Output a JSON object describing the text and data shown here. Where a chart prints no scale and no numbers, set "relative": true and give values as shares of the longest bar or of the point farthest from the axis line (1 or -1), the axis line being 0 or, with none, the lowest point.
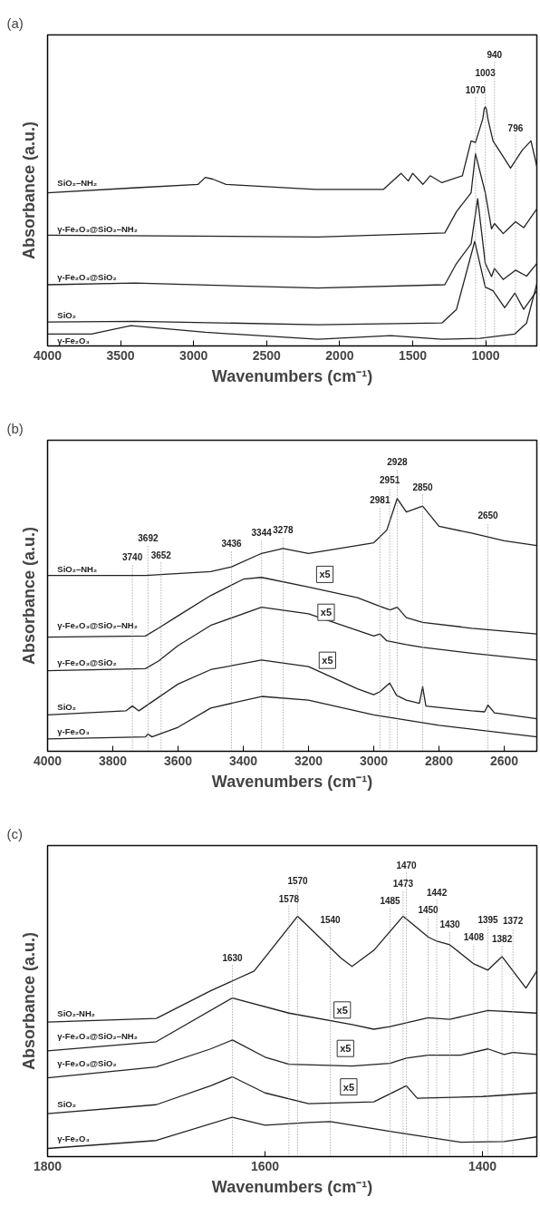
{
  "chart_data": [
    {
      "type": "line",
      "title": "(a)",
      "xlabel": "Wavenumbers (cm⁻¹)",
      "ylabel": "Absorbance (a.u.)",
      "relative": true,
      "tick_labels": "x",
      "xlim": [
        4000,
        650
      ],
      "xticks": [
        4000,
        3500,
        3000,
        2500,
        2000,
        1500,
        1000
      ],
      "series": [
        {
          "name": "SiO₂–NH₂",
          "color": "#222222",
          "x": [
            4000,
            3389,
            2969,
            2920,
            2870,
            2778,
            2167,
            1700,
            1580,
            1530,
            1500,
            1430,
            1380,
            1300,
            1160,
            1100,
            1070,
            1020,
            1010,
            1003,
            996,
            985,
            950,
            830,
            750,
            690,
            650
          ],
          "values": [
            0.641,
            0.662,
            0.676,
            0.705,
            0.698,
            0.676,
            0.655,
            0.655,
            0.722,
            0.69,
            0.722,
            0.676,
            0.712,
            0.683,
            0.712,
            0.858,
            0.851,
            0.95,
            0.993,
            1.0,
            0.993,
            0.95,
            0.858,
            0.744,
            0.819,
            0.858,
            0.751
          ]
        },
        {
          "name": "γ-Fe₂O₃@SiO₂–NH₂",
          "color": "#222222",
          "x": [
            4000,
            2150,
            1280,
            1200,
            1100,
            1070,
            1003,
            960,
            940,
            880,
            796,
            740,
            650
          ],
          "values": [
            0.463,
            0.456,
            0.473,
            0.562,
            0.641,
            0.804,
            0.641,
            0.49,
            0.512,
            0.47,
            0.52,
            0.495,
            0.573
          ]
        },
        {
          "name": "γ-Fe₂O₃@SiO₂",
          "color": "#222222",
          "x": [
            4000,
            3400,
            2150,
            1280,
            1200,
            1100,
            1055,
            1003,
            960,
            940,
            880,
            796,
            720,
            650
          ],
          "values": [
            0.256,
            0.263,
            0.242,
            0.256,
            0.345,
            0.427,
            0.616,
            0.345,
            0.29,
            0.324,
            0.278,
            0.317,
            0.292,
            0.345
          ]
        },
        {
          "name": "SiO₂",
          "color": "#222222",
          "x": [
            4000,
            3400,
            2150,
            1300,
            1200,
            1075,
            1003,
            950,
            870,
            800,
            740,
            650
          ],
          "values": [
            0.1,
            0.103,
            0.089,
            0.096,
            0.153,
            0.438,
            0.246,
            0.231,
            0.16,
            0.221,
            0.153,
            0.231
          ]
        },
        {
          "name": "γ-Fe₂O₃",
          "color": "#222222",
          "x": [
            4000,
            3700,
            3430,
            2920,
            2150,
            1650,
            1300,
            1040,
            800,
            720,
            650
          ],
          "values": [
            0.05,
            0.05,
            0.085,
            0.057,
            0.028,
            0.043,
            0.028,
            0.032,
            0.05,
            0.096,
            0.26
          ]
        }
      ],
      "ref_lines": [
        {
          "axis": "x",
          "value": 1070,
          "label": "1070",
          "line_style": "dotted"
        },
        {
          "axis": "x",
          "value": 1003,
          "label": "1003",
          "line_style": "dotted"
        },
        {
          "axis": "x",
          "value": 940,
          "label": "940",
          "line_style": "dotted"
        },
        {
          "axis": "x",
          "value": 796,
          "label": "796",
          "line_style": "dotted"
        }
      ]
    },
    {
      "type": "line",
      "title": "(b)",
      "xlabel": "Wavenumbers (cm⁻¹)",
      "ylabel": "Absorbance (a.u.)",
      "relative": true,
      "tick_labels": "x",
      "xlim": [
        4000,
        2500
      ],
      "xticks": [
        4000,
        3800,
        3600,
        3400,
        3200,
        3000,
        2800,
        2600
      ],
      "series": [
        {
          "name": "SiO₂–NH₂",
          "color": "#222222",
          "x": [
            4000,
            3700,
            3500,
            3436,
            3344,
            3278,
            3200,
            3000,
            2960,
            2928,
            2900,
            2850,
            2800,
            2700,
            2600,
            2500
          ],
          "values": [
            0.696,
            0.696,
            0.711,
            0.73,
            0.783,
            0.802,
            0.783,
            0.825,
            0.875,
            1.0,
            0.947,
            0.97,
            0.89,
            0.863,
            0.833,
            0.814
          ]
        },
        {
          "name": "γ-Fe₂O₃@SiO₂–NH₂",
          "color": "#222222",
          "x": [
            4000,
            3700,
            3660,
            3600,
            3500,
            3400,
            3344,
            3200,
            3050,
            2981,
            2950,
            2928,
            2900,
            2850,
            2700,
            2500
          ],
          "values": [
            0.452,
            0.456,
            0.487,
            0.536,
            0.616,
            0.681,
            0.688,
            0.65,
            0.608,
            0.574,
            0.559,
            0.57,
            0.529,
            0.51,
            0.487,
            0.464
          ]
        },
        {
          "name": "γ-Fe₂O₃@SiO₂",
          "color": "#222222",
          "x": [
            4000,
            3700,
            3660,
            3600,
            3500,
            3344,
            3200,
            3000,
            2981,
            2960,
            2900,
            2850,
            2700,
            2500
          ],
          "values": [
            0.319,
            0.327,
            0.357,
            0.418,
            0.498,
            0.57,
            0.544,
            0.456,
            0.464,
            0.437,
            0.422,
            0.411,
            0.388,
            0.361
          ]
        },
        {
          "name": "SiO₂",
          "color": "#222222",
          "x": [
            4000,
            3760,
            3740,
            3720,
            3660,
            3600,
            3500,
            3344,
            3200,
            3050,
            3000,
            2981,
            2951,
            2930,
            2900,
            2860,
            2850,
            2840,
            2700,
            2660,
            2650,
            2630,
            2500
          ],
          "values": [
            0.144,
            0.16,
            0.179,
            0.16,
            0.213,
            0.266,
            0.323,
            0.361,
            0.335,
            0.247,
            0.224,
            0.236,
            0.27,
            0.221,
            0.202,
            0.19,
            0.255,
            0.179,
            0.16,
            0.156,
            0.183,
            0.152,
            0.129
          ]
        },
        {
          "name": "γ-Fe₂O₃",
          "color": "#222222",
          "x": [
            4000,
            3700,
            3692,
            3680,
            3600,
            3500,
            3344,
            3200,
            3000,
            2800,
            2500
          ],
          "values": [
            0.049,
            0.057,
            0.068,
            0.057,
            0.095,
            0.171,
            0.217,
            0.202,
            0.144,
            0.103,
            0.057
          ]
        }
      ],
      "ref_lines": [
        {
          "axis": "x",
          "value": 3740,
          "label": "3740",
          "line_style": "dotted"
        },
        {
          "axis": "x",
          "value": 3692,
          "label": "3692",
          "line_style": "dotted"
        },
        {
          "axis": "x",
          "value": 3652,
          "label": "3652",
          "line_style": "dotted"
        },
        {
          "axis": "x",
          "value": 3436,
          "label": "3436",
          "line_style": "dotted"
        },
        {
          "axis": "x",
          "value": 3344,
          "label": "3344",
          "line_style": "dotted"
        },
        {
          "axis": "x",
          "value": 3278,
          "label": "3278",
          "line_style": "dotted"
        },
        {
          "axis": "x",
          "value": 2981,
          "label": "2981",
          "line_style": "dotted"
        },
        {
          "axis": "x",
          "value": 2951,
          "label": "2951",
          "line_style": "dotted"
        },
        {
          "axis": "x",
          "value": 2928,
          "label": "2928",
          "line_style": "dotted"
        },
        {
          "axis": "x",
          "value": 2850,
          "label": "2850",
          "line_style": "dotted"
        },
        {
          "axis": "x",
          "value": 2650,
          "label": "2650",
          "line_style": "dotted"
        }
      ],
      "annotations": [
        {
          "text": "x5",
          "x": 3150,
          "y": 0.7
        },
        {
          "text": "x5",
          "x": 3146,
          "y": 0.55
        },
        {
          "text": "x5",
          "x": 3142,
          "y": 0.36
        }
      ]
    },
    {
      "type": "line",
      "title": "(c)",
      "xlabel": "Wavenumbers (cm⁻¹)",
      "ylabel": "Absorbance (a.u.)",
      "relative": true,
      "tick_labels": "x",
      "xlim": [
        1800,
        1350
      ],
      "xticks": [
        1800,
        1600,
        1400
      ],
      "series": [
        {
          "name": "SiO₂-NH₂",
          "color": "#222222",
          "x": [
            1800,
            1700,
            1650,
            1630,
            1610,
            1570,
            1530,
            1520,
            1500,
            1473,
            1450,
            1442,
            1430,
            1408,
            1395,
            1382,
            1360,
            1350
          ],
          "values": [
            0.56,
            0.575,
            0.69,
            0.731,
            0.772,
            1.0,
            0.825,
            0.791,
            0.858,
            1.0,
            0.914,
            0.896,
            0.881,
            0.802,
            0.776,
            0.832,
            0.701,
            0.772
          ]
        },
        {
          "name": "γ-Fe₂O₃@SiO₂–NH₂",
          "color": "#222222",
          "x": [
            1800,
            1700,
            1630,
            1578,
            1520,
            1500,
            1485,
            1450,
            1430,
            1395,
            1350
          ],
          "values": [
            0.44,
            0.478,
            0.66,
            0.597,
            0.549,
            0.53,
            0.541,
            0.578,
            0.571,
            0.608,
            0.597
          ]
        },
        {
          "name": "γ-Fe₂O₃@SiO₂",
          "color": "#222222",
          "x": [
            1800,
            1700,
            1650,
            1630,
            1600,
            1578,
            1520,
            1485,
            1470,
            1450,
            1420,
            1395,
            1380,
            1372,
            1350
          ],
          "values": [
            0.328,
            0.373,
            0.448,
            0.485,
            0.414,
            0.384,
            0.377,
            0.388,
            0.41,
            0.422,
            0.422,
            0.448,
            0.425,
            0.433,
            0.425
          ]
        },
        {
          "name": "SiO₂",
          "color": "#222222",
          "x": [
            1800,
            1700,
            1650,
            1630,
            1600,
            1560,
            1500,
            1470,
            1460,
            1400,
            1350
          ],
          "values": [
            0.179,
            0.216,
            0.295,
            0.332,
            0.265,
            0.22,
            0.228,
            0.295,
            0.243,
            0.25,
            0.265
          ]
        },
        {
          "name": "γ-Fe₂O₃",
          "color": "#222222",
          "x": [
            1800,
            1700,
            1630,
            1600,
            1560,
            1540,
            1480,
            1420,
            1380,
            1350
          ],
          "values": [
            0.034,
            0.067,
            0.164,
            0.131,
            0.142,
            0.146,
            0.101,
            0.06,
            0.063,
            0.082
          ]
        }
      ],
      "ref_lines": [
        {
          "axis": "x",
          "value": 1630,
          "label": "1630",
          "line_style": "dotted"
        },
        {
          "axis": "x",
          "value": 1578,
          "label": "1578",
          "line_style": "dotted"
        },
        {
          "axis": "x",
          "value": 1570,
          "label": "1570",
          "line_style": "dotted"
        },
        {
          "axis": "x",
          "value": 1540,
          "label": "1540",
          "line_style": "dotted"
        },
        {
          "axis": "x",
          "value": 1485,
          "label": "1485",
          "line_style": "dotted"
        },
        {
          "axis": "x",
          "value": 1473,
          "label": "1473",
          "line_style": "dotted"
        },
        {
          "axis": "x",
          "value": 1470,
          "label": "1470",
          "line_style": "dotted"
        },
        {
          "axis": "x",
          "value": 1450,
          "label": "1450",
          "line_style": "dotted"
        },
        {
          "axis": "x",
          "value": 1442,
          "label": "1442",
          "line_style": "dotted"
        },
        {
          "axis": "x",
          "value": 1430,
          "label": "1430",
          "line_style": "dotted"
        },
        {
          "axis": "x",
          "value": 1408,
          "label": "1408",
          "line_style": "dotted"
        },
        {
          "axis": "x",
          "value": 1395,
          "label": "1395",
          "line_style": "dotted"
        },
        {
          "axis": "x",
          "value": 1382,
          "label": "1382",
          "line_style": "dotted"
        },
        {
          "axis": "x",
          "value": 1372,
          "label": "1372",
          "line_style": "dotted"
        }
      ],
      "annotations": [
        {
          "text": "x5",
          "x": 1529,
          "y": 0.61
        },
        {
          "text": "x5",
          "x": 1526,
          "y": 0.45
        },
        {
          "text": "x5",
          "x": 1523,
          "y": 0.29
        }
      ]
    }
  ]
}
